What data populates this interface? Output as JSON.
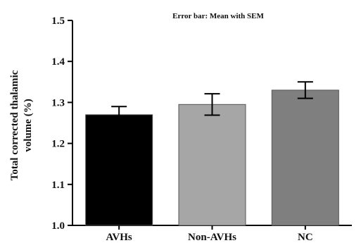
{
  "chart_data": {
    "type": "bar",
    "annotation": "Error bar: Mean with SEM",
    "ylabel_line1": "Total corrected thalamic",
    "ylabel_line2": "volume (%)",
    "xlabel": "",
    "categories": [
      "AVHs",
      "Non-AVHs",
      "NC"
    ],
    "values": [
      1.27,
      1.295,
      1.33
    ],
    "errors": [
      0.02,
      0.026,
      0.02
    ],
    "ylim": [
      1.0,
      1.5
    ],
    "yticks": [
      "1.0",
      "1.1",
      "1.2",
      "1.3",
      "1.4",
      "1.5"
    ],
    "bar_colors": [
      "#000000",
      "#a6a6a6",
      "#7f7f7f"
    ],
    "grid": false,
    "legend": "none"
  }
}
